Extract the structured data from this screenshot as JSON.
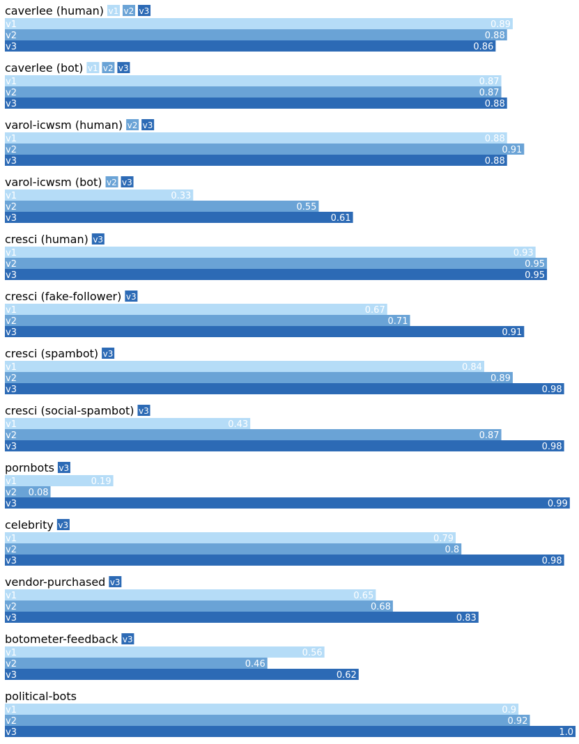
{
  "chart_data": {
    "type": "bar",
    "orientation": "horizontal",
    "xlim": [
      0,
      1
    ],
    "grid": false,
    "series_colors": {
      "v1": "#b5dcf7",
      "v2": "#6aa3d6",
      "v3": "#2c6ab5"
    },
    "label_colors": {
      "v1": "#ffffff",
      "v2": "#ffffff",
      "v3": "#ffffff"
    },
    "groups": [
      {
        "title": "caverlee (human)",
        "tags": [
          "v1",
          "v2",
          "v3"
        ],
        "bars": [
          {
            "series": "v1",
            "value": 0.89,
            "label": "0.89"
          },
          {
            "series": "v2",
            "value": 0.88,
            "label": "0.88"
          },
          {
            "series": "v3",
            "value": 0.86,
            "label": "0.86"
          }
        ]
      },
      {
        "title": "caverlee (bot)",
        "tags": [
          "v1",
          "v2",
          "v3"
        ],
        "bars": [
          {
            "series": "v1",
            "value": 0.87,
            "label": "0.87"
          },
          {
            "series": "v2",
            "value": 0.87,
            "label": "0.87"
          },
          {
            "series": "v3",
            "value": 0.88,
            "label": "0.88"
          }
        ]
      },
      {
        "title": "varol-icwsm (human)",
        "tags": [
          "v2",
          "v3"
        ],
        "bars": [
          {
            "series": "v1",
            "value": 0.88,
            "label": "0.88"
          },
          {
            "series": "v2",
            "value": 0.91,
            "label": "0.91"
          },
          {
            "series": "v3",
            "value": 0.88,
            "label": "0.88"
          }
        ]
      },
      {
        "title": "varol-icwsm (bot)",
        "tags": [
          "v2",
          "v3"
        ],
        "bars": [
          {
            "series": "v1",
            "value": 0.33,
            "label": "0.33"
          },
          {
            "series": "v2",
            "value": 0.55,
            "label": "0.55"
          },
          {
            "series": "v3",
            "value": 0.61,
            "label": "0.61"
          }
        ]
      },
      {
        "title": "cresci (human)",
        "tags": [
          "v3"
        ],
        "bars": [
          {
            "series": "v1",
            "value": 0.93,
            "label": "0.93"
          },
          {
            "series": "v2",
            "value": 0.95,
            "label": "0.95"
          },
          {
            "series": "v3",
            "value": 0.95,
            "label": "0.95"
          }
        ]
      },
      {
        "title": "cresci (fake-follower)",
        "tags": [
          "v3"
        ],
        "bars": [
          {
            "series": "v1",
            "value": 0.67,
            "label": "0.67"
          },
          {
            "series": "v2",
            "value": 0.71,
            "label": "0.71"
          },
          {
            "series": "v3",
            "value": 0.91,
            "label": "0.91"
          }
        ]
      },
      {
        "title": "cresci (spambot)",
        "tags": [
          "v3"
        ],
        "bars": [
          {
            "series": "v1",
            "value": 0.84,
            "label": "0.84"
          },
          {
            "series": "v2",
            "value": 0.89,
            "label": "0.89"
          },
          {
            "series": "v3",
            "value": 0.98,
            "label": "0.98"
          }
        ]
      },
      {
        "title": "cresci (social-spambot)",
        "tags": [
          "v3"
        ],
        "bars": [
          {
            "series": "v1",
            "value": 0.43,
            "label": "0.43"
          },
          {
            "series": "v2",
            "value": 0.87,
            "label": "0.87"
          },
          {
            "series": "v3",
            "value": 0.98,
            "label": "0.98"
          }
        ]
      },
      {
        "title": "pornbots",
        "tags": [
          "v3"
        ],
        "bars": [
          {
            "series": "v1",
            "value": 0.19,
            "label": "0.19"
          },
          {
            "series": "v2",
            "value": 0.08,
            "label": "0.08"
          },
          {
            "series": "v3",
            "value": 0.99,
            "label": "0.99"
          }
        ]
      },
      {
        "title": "celebrity",
        "tags": [
          "v3"
        ],
        "bars": [
          {
            "series": "v1",
            "value": 0.79,
            "label": "0.79"
          },
          {
            "series": "v2",
            "value": 0.8,
            "label": "0.8"
          },
          {
            "series": "v3",
            "value": 0.98,
            "label": "0.98"
          }
        ]
      },
      {
        "title": "vendor-purchased",
        "tags": [
          "v3"
        ],
        "bars": [
          {
            "series": "v1",
            "value": 0.65,
            "label": "0.65"
          },
          {
            "series": "v2",
            "value": 0.68,
            "label": "0.68"
          },
          {
            "series": "v3",
            "value": 0.83,
            "label": "0.83"
          }
        ]
      },
      {
        "title": "botometer-feedback",
        "tags": [
          "v3"
        ],
        "bars": [
          {
            "series": "v1",
            "value": 0.56,
            "label": "0.56"
          },
          {
            "series": "v2",
            "value": 0.46,
            "label": "0.46"
          },
          {
            "series": "v3",
            "value": 0.62,
            "label": "0.62"
          }
        ]
      },
      {
        "title": "political-bots",
        "tags": [],
        "bars": [
          {
            "series": "v1",
            "value": 0.9,
            "label": "0.9"
          },
          {
            "series": "v2",
            "value": 0.92,
            "label": "0.92"
          },
          {
            "series": "v3",
            "value": 1.0,
            "label": "1.0"
          }
        ]
      }
    ]
  }
}
